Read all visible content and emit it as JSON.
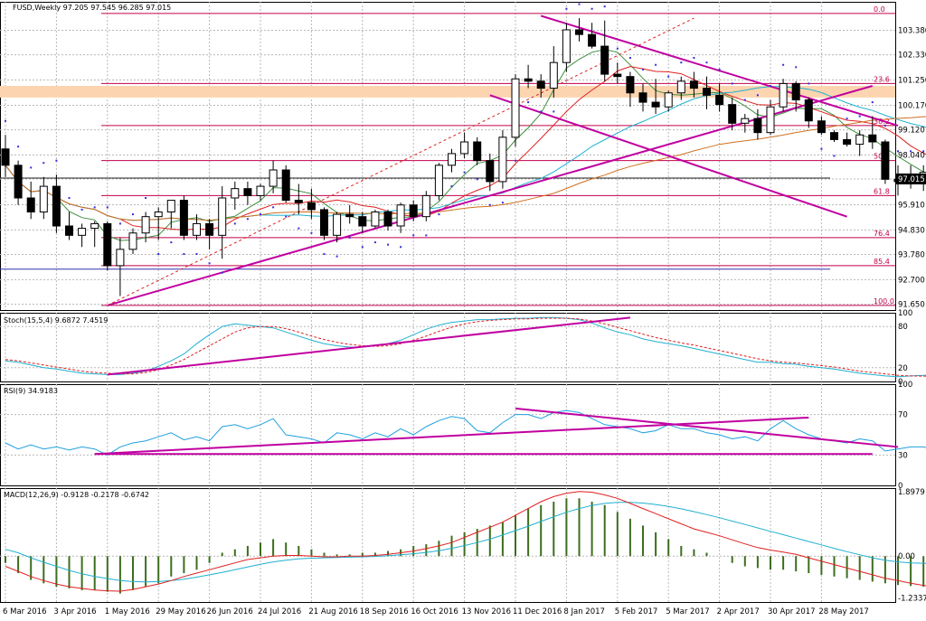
{
  "chart_data": [
    {
      "panel": "price",
      "type": "candlestick",
      "title": "FUSD,Weekly  97.205 97.545 96.285 97.015",
      "current_price": "97.015",
      "ylim": [
        91.4,
        104.6
      ],
      "y_ticks": [
        "103.380",
        "102.330",
        "101.250",
        "100.170",
        "99.120",
        "98.040",
        "97.015",
        "95.910",
        "94.830",
        "93.780",
        "92.700",
        "91.650"
      ],
      "y_tick_values": [
        103.38,
        102.33,
        101.25,
        100.17,
        99.12,
        98.04,
        97.015,
        95.91,
        94.83,
        93.78,
        92.7,
        91.65
      ],
      "x_ticks": [
        "6 Mar 2016",
        "3 Apr 2016",
        "1 May 2016",
        "29 May 2016",
        "26 Jun 2016",
        "24 Jul 2016",
        "21 Aug 2016",
        "18 Sep 2016",
        "16 Oct 2016",
        "13 Nov 2016",
        "11 Dec 2016",
        "8 Jan 2017",
        "5 Feb 2017",
        "5 Mar 2017",
        "2 Apr 2017",
        "30 Apr 2017",
        "28 May 2017"
      ],
      "x_tick_bars": [
        0,
        4,
        8,
        12,
        16,
        20,
        24,
        28,
        32,
        36,
        40,
        44,
        48,
        52,
        56,
        60,
        64
      ],
      "candles": [
        [
          98.3,
          98.9,
          97.1,
          97.6
        ],
        [
          97.6,
          97.8,
          95.9,
          96.2
        ],
        [
          96.2,
          96.9,
          95.3,
          95.6
        ],
        [
          95.6,
          97.1,
          95.3,
          96.7
        ],
        [
          96.7,
          97.2,
          94.7,
          95.0
        ],
        [
          95.0,
          95.6,
          94.4,
          94.6
        ],
        [
          94.6,
          95.1,
          94.1,
          94.9
        ],
        [
          94.9,
          95.2,
          94.1,
          95.1
        ],
        [
          95.1,
          95.2,
          93.1,
          93.3
        ],
        [
          93.3,
          94.5,
          92.0,
          94.0
        ],
        [
          94.0,
          94.9,
          93.8,
          94.7
        ],
        [
          94.7,
          95.6,
          94.3,
          95.4
        ],
        [
          95.4,
          95.8,
          94.4,
          95.6
        ],
        [
          95.6,
          96.1,
          94.9,
          96.1
        ],
        [
          96.1,
          96.3,
          94.4,
          94.6
        ],
        [
          94.6,
          95.5,
          94.4,
          95.1
        ],
        [
          95.1,
          95.3,
          94.0,
          94.6
        ],
        [
          94.6,
          96.7,
          93.6,
          96.2
        ],
        [
          96.2,
          96.9,
          95.7,
          96.6
        ],
        [
          96.6,
          96.9,
          95.9,
          96.3
        ],
        [
          96.3,
          96.8,
          96.1,
          96.7
        ],
        [
          96.7,
          97.8,
          96.4,
          97.4
        ],
        [
          97.4,
          97.6,
          96.0,
          96.1
        ],
        [
          96.1,
          96.8,
          95.5,
          96.0
        ],
        [
          96.0,
          96.6,
          95.3,
          95.7
        ],
        [
          95.7,
          95.8,
          94.4,
          94.6
        ],
        [
          94.6,
          95.6,
          94.3,
          95.5
        ],
        [
          95.5,
          95.9,
          95.1,
          95.4
        ],
        [
          95.4,
          95.6,
          94.7,
          95.0
        ],
        [
          95.0,
          95.7,
          94.9,
          95.6
        ],
        [
          95.6,
          95.7,
          94.8,
          95.0
        ],
        [
          95.0,
          96.0,
          94.7,
          95.9
        ],
        [
          95.9,
          96.1,
          95.2,
          95.4
        ],
        [
          95.4,
          96.5,
          95.2,
          96.3
        ],
        [
          96.3,
          97.7,
          96.1,
          97.6
        ],
        [
          97.6,
          98.3,
          97.3,
          98.1
        ],
        [
          98.1,
          99.0,
          97.9,
          98.6
        ],
        [
          98.6,
          98.8,
          97.6,
          97.8
        ],
        [
          97.8,
          98.1,
          96.5,
          96.9
        ],
        [
          96.9,
          99.1,
          96.6,
          98.8
        ],
        [
          98.8,
          101.5,
          98.4,
          101.3
        ],
        [
          101.3,
          101.9,
          100.9,
          101.2
        ],
        [
          101.2,
          101.5,
          100.5,
          100.9
        ],
        [
          100.9,
          102.7,
          100.5,
          102.0
        ],
        [
          102.0,
          103.7,
          101.6,
          103.4
        ],
        [
          103.4,
          103.9,
          102.9,
          103.2
        ],
        [
          103.2,
          103.7,
          102.6,
          102.7
        ],
        [
          102.7,
          103.8,
          101.2,
          101.5
        ],
        [
          101.5,
          102.0,
          101.1,
          101.4
        ],
        [
          101.4,
          101.6,
          100.1,
          100.7
        ],
        [
          100.7,
          101.1,
          99.9,
          100.3
        ],
        [
          100.3,
          101.3,
          99.8,
          100.1
        ],
        [
          100.1,
          100.8,
          99.9,
          100.7
        ],
        [
          100.7,
          101.4,
          100.4,
          101.2
        ],
        [
          101.2,
          101.6,
          100.5,
          100.9
        ],
        [
          100.9,
          101.4,
          100.0,
          100.6
        ],
        [
          100.6,
          101.1,
          99.9,
          100.2
        ],
        [
          100.2,
          100.5,
          99.1,
          99.4
        ],
        [
          99.4,
          99.8,
          99.0,
          99.6
        ],
        [
          99.6,
          100.0,
          98.7,
          99.0
        ],
        [
          99.0,
          100.4,
          98.9,
          100.1
        ],
        [
          100.1,
          101.3,
          99.9,
          101.1
        ],
        [
          101.1,
          101.2,
          99.9,
          100.4
        ],
        [
          100.4,
          100.5,
          99.2,
          99.5
        ],
        [
          99.5,
          99.7,
          98.9,
          99.0
        ],
        [
          99.0,
          99.1,
          98.6,
          98.7
        ],
        [
          98.7,
          99.0,
          98.4,
          98.5
        ],
        [
          98.5,
          99.1,
          98.0,
          98.9
        ],
        [
          98.9,
          99.7,
          98.3,
          98.6
        ],
        [
          98.6,
          98.7,
          96.8,
          97.0
        ],
        [
          97.0,
          97.6,
          96.3,
          96.9
        ],
        [
          96.9,
          97.6,
          96.6,
          96.8
        ],
        [
          96.8,
          97.6,
          96.5,
          97.3
        ],
        [
          97.205,
          97.545,
          96.285,
          97.015
        ]
      ],
      "fib_levels": [
        {
          "label": "0.0",
          "value": 104.1
        },
        {
          "label": "23.6",
          "value": 101.1
        },
        {
          "label": "38.2",
          "value": 99.3
        },
        {
          "label": "50.0",
          "value": 97.8
        },
        {
          "label": "61.8",
          "value": 96.3
        },
        {
          "label": "76.4",
          "value": 94.5
        },
        {
          "label": "85.4",
          "value": 93.3
        },
        {
          "label": "100.0",
          "value": 91.6
        }
      ],
      "resistance_zone": [
        100.5,
        101.0
      ],
      "horizontal_lines": [
        {
          "value": 93.15,
          "color": "#3030b0"
        },
        {
          "value": 97.05,
          "color": "#202020"
        }
      ],
      "colors": {
        "bull": "#ffffff",
        "bear": "#000000",
        "fib": "#c0004c",
        "trend": "#c000a0",
        "sma_fast": "#3f8f3f",
        "sma_mid": "#e02020",
        "sma_slow": "#20b0d0",
        "sma_long": "#d07020",
        "parabolic_sar": "#3030e0",
        "zone": "#fcd5b0"
      }
    },
    {
      "panel": "stochastic",
      "type": "line",
      "title": "Stoch(15,5,4) 9.6872 7.4519",
      "ylim": [
        0,
        100
      ],
      "y_ticks": [
        "100",
        "80",
        "20",
        "0"
      ],
      "y_tick_values": [
        100,
        80,
        20,
        0
      ],
      "series": [
        {
          "values": [
            30,
            28,
            24,
            20,
            18,
            15,
            12,
            11,
            10,
            10,
            12,
            15,
            22,
            30,
            40,
            55,
            68,
            80,
            84,
            82,
            80,
            78,
            72,
            66,
            60,
            55,
            52,
            50,
            50,
            52,
            55,
            60,
            68,
            76,
            82,
            86,
            88,
            90,
            90,
            91,
            92,
            92,
            93,
            93,
            92,
            90,
            85,
            78,
            72,
            68,
            62,
            58,
            55,
            52,
            48,
            44,
            40,
            36,
            32,
            28,
            28,
            26,
            25,
            22,
            20,
            18,
            15,
            12,
            10,
            8,
            7,
            8,
            9,
            9.7
          ]
        },
        {
          "values": [
            32,
            30,
            27,
            24,
            21,
            18,
            15,
            13,
            12,
            11,
            11,
            13,
            17,
            24,
            32,
            42,
            52,
            62,
            72,
            78,
            80,
            80,
            77,
            72,
            66,
            61,
            57,
            54,
            52,
            51,
            52,
            55,
            60,
            66,
            73,
            79,
            84,
            87,
            89,
            90,
            91,
            91,
            92,
            92,
            92,
            91,
            88,
            84,
            79,
            74,
            69,
            64,
            60,
            56,
            53,
            49,
            45,
            41,
            37,
            33,
            30,
            28,
            27,
            25,
            23,
            21,
            18,
            15,
            13,
            11,
            9,
            8,
            7.8,
            7.5
          ]
        }
      ],
      "colors": {
        "main": "#20b0d0",
        "signal": "#e02020",
        "trend": "#c000a0"
      }
    },
    {
      "panel": "rsi",
      "type": "line",
      "title": "RSI(9) 34.9183",
      "ylim": [
        0,
        100
      ],
      "y_ticks": [
        "100",
        "70",
        "30",
        "0"
      ],
      "y_tick_values": [
        100,
        70,
        30,
        0
      ],
      "series": [
        {
          "values": [
            42,
            36,
            40,
            36,
            38,
            35,
            38,
            36,
            30,
            38,
            42,
            44,
            48,
            52,
            45,
            48,
            44,
            58,
            60,
            56,
            60,
            66,
            50,
            48,
            46,
            42,
            52,
            50,
            46,
            52,
            48,
            56,
            50,
            58,
            64,
            68,
            66,
            54,
            52,
            62,
            70,
            70,
            66,
            72,
            74,
            72,
            66,
            60,
            58,
            56,
            52,
            54,
            60,
            56,
            56,
            52,
            50,
            46,
            48,
            44,
            56,
            64,
            56,
            50,
            46,
            44,
            42,
            46,
            44,
            34,
            36,
            38,
            38,
            34.9
          ]
        }
      ],
      "colors": {
        "line": "#20a0e0",
        "trend": "#c000a0"
      }
    },
    {
      "panel": "macd",
      "type": "bar+line",
      "title": "MACD(12,26,9) -0.9128 -0.2178 -0.6742",
      "ylim": [
        -1.35,
        2.0
      ],
      "y_ticks": [
        "1.8979",
        "0.00",
        "-1.2337"
      ],
      "y_tick_values": [
        1.8979,
        0.0,
        -1.2337
      ],
      "histogram": [
        -0.2,
        -0.5,
        -0.7,
        -0.8,
        -0.9,
        -0.95,
        -1.0,
        -1.0,
        -1.05,
        -1.1,
        -1.0,
        -0.9,
        -0.8,
        -0.6,
        -0.5,
        -0.4,
        -0.2,
        0.1,
        0.2,
        0.3,
        0.4,
        0.5,
        0.4,
        0.3,
        0.2,
        0.1,
        0.05,
        0.05,
        0.1,
        0.1,
        0.15,
        0.2,
        0.3,
        0.35,
        0.45,
        0.6,
        0.7,
        0.8,
        0.9,
        1.0,
        1.2,
        1.4,
        1.5,
        1.6,
        1.7,
        1.7,
        1.6,
        1.5,
        1.3,
        1.1,
        0.9,
        0.7,
        0.5,
        0.3,
        0.2,
        0.1,
        0.0,
        -0.2,
        -0.3,
        -0.35,
        -0.4,
        -0.4,
        -0.45,
        -0.5,
        -0.55,
        -0.6,
        -0.65,
        -0.7,
        -0.75,
        -0.8,
        -0.85,
        -0.88,
        -0.9,
        -0.91
      ],
      "macd_line": [
        -0.3,
        -0.45,
        -0.6,
        -0.72,
        -0.82,
        -0.9,
        -0.95,
        -1.0,
        -1.02,
        -1.03,
        -0.98,
        -0.9,
        -0.82,
        -0.72,
        -0.6,
        -0.5,
        -0.4,
        -0.3,
        -0.2,
        -0.1,
        -0.05,
        0.0,
        0.02,
        0.02,
        0.0,
        -0.02,
        -0.02,
        0.0,
        0.0,
        0.02,
        0.05,
        0.1,
        0.15,
        0.22,
        0.3,
        0.4,
        0.55,
        0.7,
        0.85,
        1.0,
        1.2,
        1.4,
        1.6,
        1.75,
        1.85,
        1.9,
        1.88,
        1.8,
        1.7,
        1.55,
        1.4,
        1.25,
        1.1,
        0.95,
        0.8,
        0.7,
        0.6,
        0.48,
        0.36,
        0.25,
        0.18,
        0.12,
        0.05,
        -0.05,
        -0.15,
        -0.25,
        -0.35,
        -0.45,
        -0.55,
        -0.65,
        -0.72,
        -0.8,
        -0.86,
        -0.91
      ],
      "signal_line": [
        0.2,
        0.1,
        -0.05,
        -0.18,
        -0.3,
        -0.42,
        -0.52,
        -0.6,
        -0.66,
        -0.72,
        -0.75,
        -0.76,
        -0.75,
        -0.72,
        -0.68,
        -0.62,
        -0.55,
        -0.48,
        -0.4,
        -0.32,
        -0.24,
        -0.17,
        -0.12,
        -0.08,
        -0.06,
        -0.05,
        -0.04,
        -0.03,
        -0.02,
        -0.01,
        0.01,
        0.04,
        0.07,
        0.11,
        0.16,
        0.23,
        0.31,
        0.4,
        0.5,
        0.62,
        0.75,
        0.88,
        1.02,
        1.16,
        1.29,
        1.4,
        1.49,
        1.55,
        1.58,
        1.58,
        1.56,
        1.52,
        1.46,
        1.39,
        1.31,
        1.22,
        1.13,
        1.03,
        0.93,
        0.83,
        0.73,
        0.63,
        0.53,
        0.43,
        0.33,
        0.23,
        0.13,
        0.04,
        -0.05,
        -0.12,
        -0.17,
        -0.2,
        -0.21,
        -0.22
      ],
      "colors": {
        "histogram": "#3c6e1e",
        "macd": "#e02020",
        "signal": "#20b0d0"
      }
    }
  ]
}
